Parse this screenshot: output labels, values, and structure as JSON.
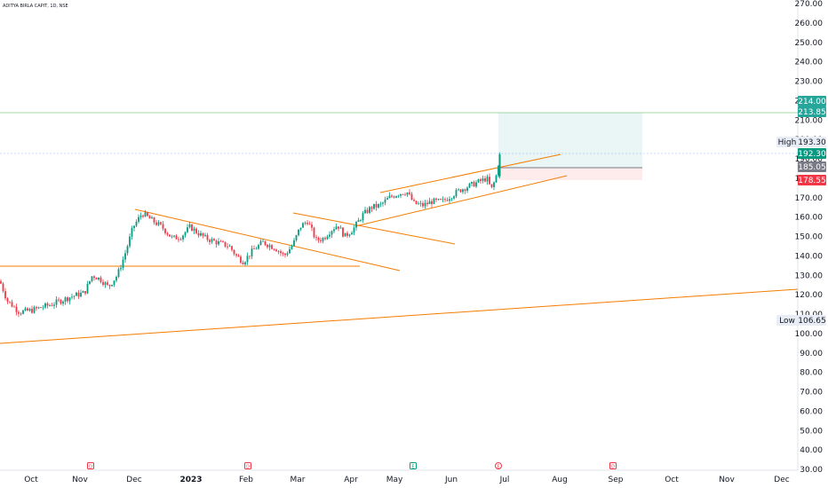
{
  "symbol_title": "ADITYA BIRLA CAPIT, 1D, NSE",
  "chart_data": {
    "type": "candlestick",
    "y_ticks": [
      "270.00",
      "260.00",
      "250.00",
      "240.00",
      "230.00",
      "220.00",
      "210.00",
      "200.00",
      "190.00",
      "180.00",
      "170.00",
      "160.00",
      "150.00",
      "140.00",
      "130.00",
      "120.00",
      "110.00",
      "100.00",
      "90.00",
      "80.00",
      "70.00",
      "60.00",
      "50.00",
      "40.00",
      "30.00"
    ],
    "x_labels": [
      {
        "label": "Oct"
      },
      {
        "label": "Nov"
      },
      {
        "label": "Dec"
      },
      {
        "label": "2023",
        "bold": true
      },
      {
        "label": "Feb"
      },
      {
        "label": "Mar"
      },
      {
        "label": "Apr"
      },
      {
        "label": "May"
      },
      {
        "label": "Jun"
      },
      {
        "label": "Jul"
      },
      {
        "label": "Aug"
      },
      {
        "label": "Sep"
      },
      {
        "label": "Oct"
      },
      {
        "label": "Nov"
      },
      {
        "label": "Dec"
      }
    ],
    "price_tags": [
      {
        "text": "214.00",
        "kind": "target",
        "color": "#26a69a"
      },
      {
        "text": "213.85",
        "kind": "target2",
        "color": "#26a69a"
      },
      {
        "prefix": "High",
        "text": "193.30",
        "kind": "high",
        "color": "#e8edf5"
      },
      {
        "text": "192.30",
        "kind": "last",
        "color": "#089981"
      },
      {
        "text": "185.05",
        "kind": "entry",
        "color": "#787b86"
      },
      {
        "text": "178.55",
        "kind": "stop",
        "color": "#f23645"
      },
      {
        "prefix": "Low",
        "text": "106.65",
        "kind": "low",
        "color": "#e8edf5"
      }
    ],
    "event_markers": [
      "D",
      "D",
      "E",
      "E",
      "D"
    ],
    "colors": {
      "up": "#089981",
      "down": "#f23645",
      "lines": "#f57c00"
    }
  }
}
